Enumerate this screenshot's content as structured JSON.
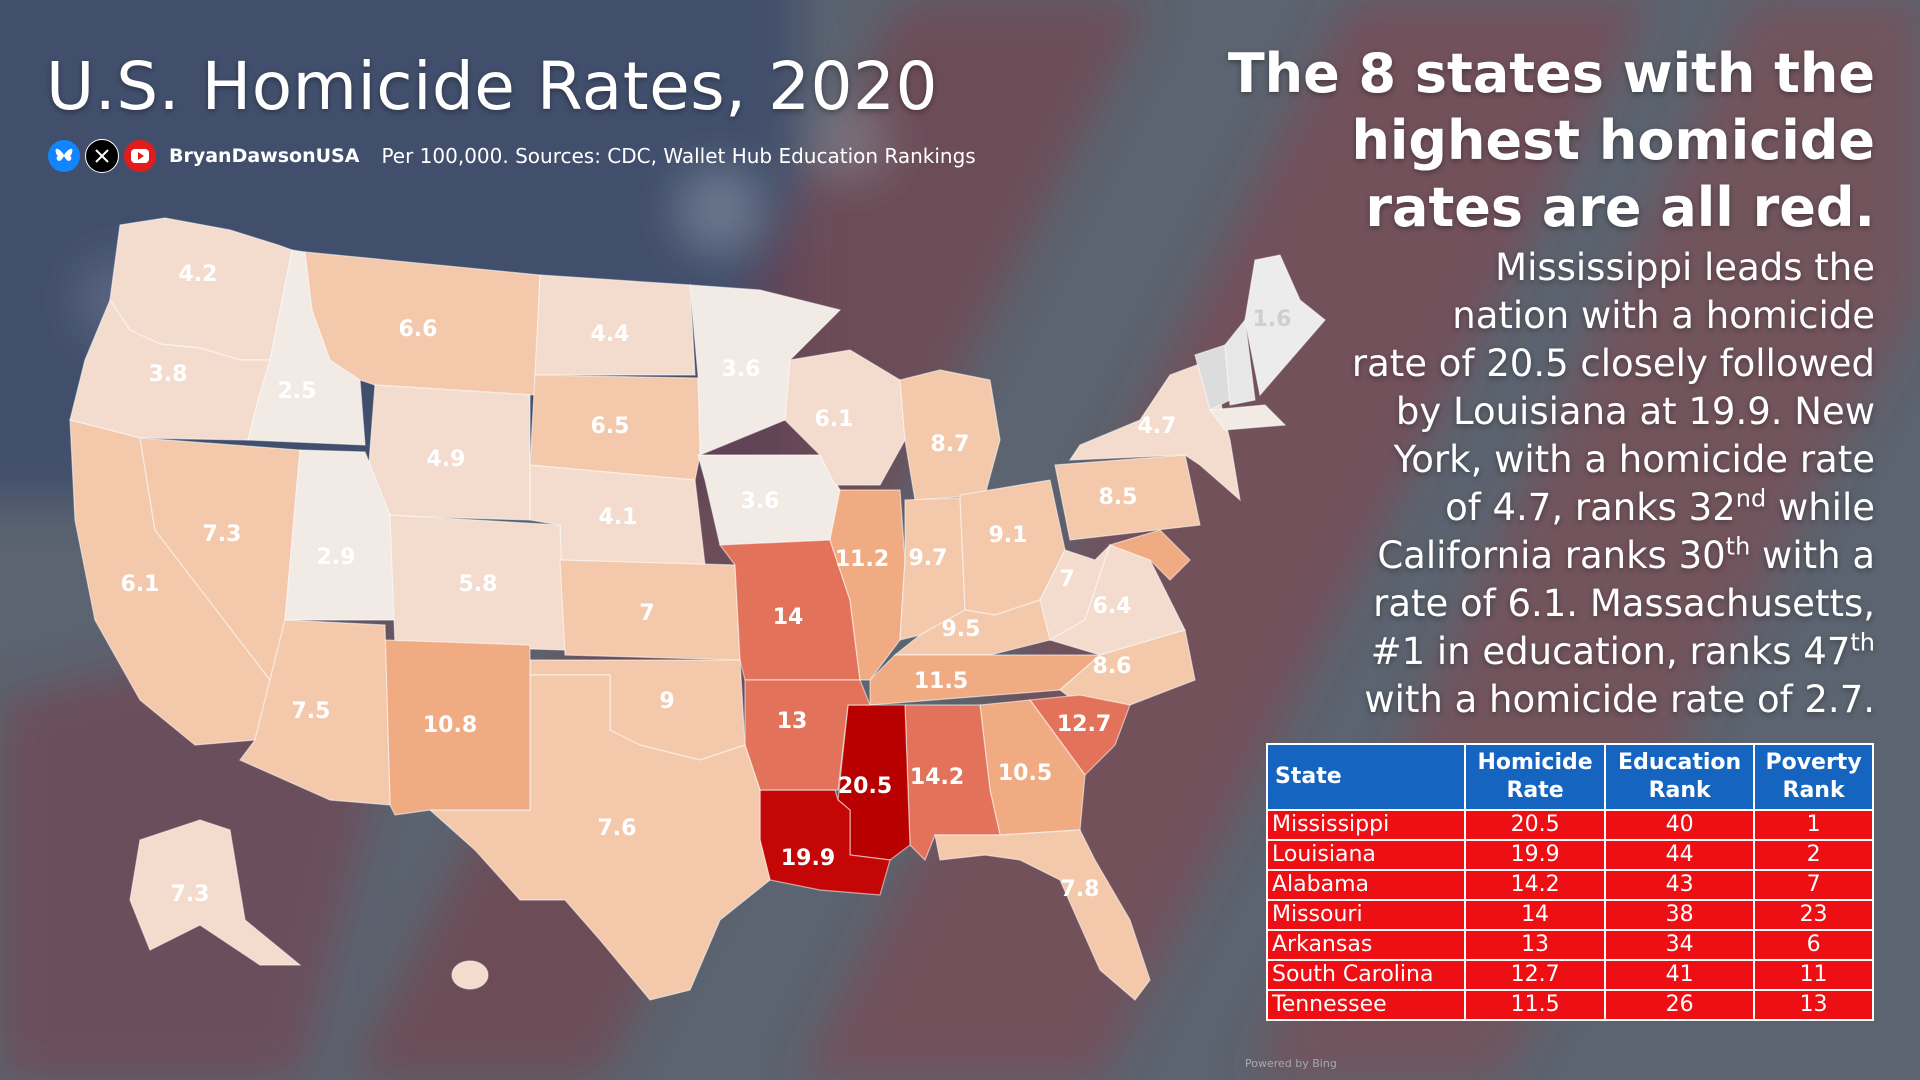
{
  "title": "U.S. Homicide Rates, 2020",
  "social": {
    "icons": [
      "bluesky-icon",
      "x-icon",
      "youtube-icon"
    ],
    "handle": "BryanDawsonUSA",
    "sources": "Per 100,000. Sources: CDC, Wallet Hub Education Rankings"
  },
  "headline": {
    "line1": "The 8 states with the",
    "line2": "highest homicide",
    "line3": "rates are all red."
  },
  "summary": {
    "l1": "Mississippi leads the",
    "l2": "nation with a homicide",
    "l3": "rate of 20.5 closely followed",
    "l4": "by Louisiana at 19.9. New",
    "l5a": "York, with a homicide rate",
    "l6a": "of 4.7, ranks 32",
    "l6sup": "nd",
    "l6b": " while",
    "l7a": "California ranks 30",
    "l7sup": "th",
    "l7b": " with a",
    "l8": "rate of 6.1. Massachusetts,",
    "l9a": "#1 in education, ranks 47",
    "l9sup": "th",
    "l10": "with a homicide rate of 2.7."
  },
  "table": {
    "headers": [
      "State",
      "Homicide Rate",
      "Education Rank",
      "Poverty Rank"
    ],
    "header_lines": [
      [
        "State"
      ],
      [
        "Homicide",
        "Rate"
      ],
      [
        "Education",
        "Rank"
      ],
      [
        "Poverty",
        "Rank"
      ]
    ],
    "rows": [
      [
        "Mississippi",
        "20.5",
        "40",
        "1"
      ],
      [
        "Louisiana",
        "19.9",
        "44",
        "2"
      ],
      [
        "Alabama",
        "14.2",
        "43",
        "7"
      ],
      [
        "Missouri",
        "14",
        "38",
        "23"
      ],
      [
        "Arkansas",
        "13",
        "34",
        "6"
      ],
      [
        "South Carolina",
        "12.7",
        "41",
        "11"
      ],
      [
        "Tennessee",
        "11.5",
        "26",
        "13"
      ]
    ]
  },
  "map_labels": {
    "WA": "4.2",
    "OR": "3.8",
    "ID": "2.5",
    "MT": "6.6",
    "ND": "4.4",
    "MN": "3.6",
    "SD": "6.5",
    "WY": "4.9",
    "NE": "4.1",
    "IA": "3.6",
    "WI": "6.1",
    "MI": "8.7",
    "CA": "6.1",
    "NV": "7.3",
    "UT": "2.9",
    "CO": "5.8",
    "KS": "7",
    "MO": "14",
    "IL": "11.2",
    "IN": "9.7",
    "OH": "9.1",
    "PA": "8.5",
    "NY": "4.7",
    "ME": "1.6",
    "WV": "7",
    "VA": "6.4",
    "KY": "9.5",
    "TN": "11.5",
    "NC": "8.6",
    "SC": "12.7",
    "AZ": "7.5",
    "NM": "10.8",
    "OK": "9",
    "AR": "13",
    "TX": "7.6",
    "LA": "19.9",
    "MS": "20.5",
    "AL": "14.2",
    "GA": "10.5",
    "FL": "7.8",
    "AK": "7.3"
  },
  "colors": {
    "highest": "#b80000",
    "very_high": "#e2735a",
    "high": "#f0ab83",
    "medium": "#f3c8ab",
    "low": "#f3dccd",
    "lowest": "#f1eae5",
    "table_header": "#1565c0",
    "table_row": "#ee0f14"
  },
  "footer": "Powered by Bing"
}
